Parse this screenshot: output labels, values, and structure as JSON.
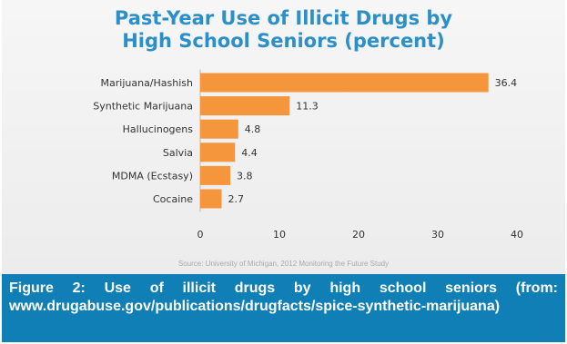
{
  "chart_data": {
    "type": "bar",
    "orientation": "horizontal",
    "title_line1": "Past-Year Use of Illicit Drugs by",
    "title_line2": "High School Seniors (percent)",
    "categories": [
      "Marijuana/Hashish",
      "Synthetic Marijuana",
      "Hallucinogens",
      "Salvia",
      "MDMA (Ecstasy)",
      "Cocaine"
    ],
    "values": [
      36.4,
      11.3,
      4.8,
      4.4,
      3.8,
      2.7
    ],
    "value_labels": [
      "36.4",
      "11.3",
      "4.8",
      "4.4",
      "3.8",
      "2.7"
    ],
    "xlim": [
      0,
      40
    ],
    "xticks": [
      0,
      10,
      20,
      30,
      40
    ],
    "xtick_labels": [
      "0",
      "10",
      "20",
      "30",
      "40"
    ],
    "bar_color": "#f5953c",
    "grid": false,
    "source": "Source: University of Michigan, 2012 Monitoring the Future Study"
  },
  "caption": "Figure 2: Use of illicit drugs by high school seniors (from: www.drugabuse.gov/publications/drugfacts/spice-synthetic-marijuana)",
  "colors": {
    "title": "#2c8fc7",
    "caption_background": "#0f7fb5"
  }
}
